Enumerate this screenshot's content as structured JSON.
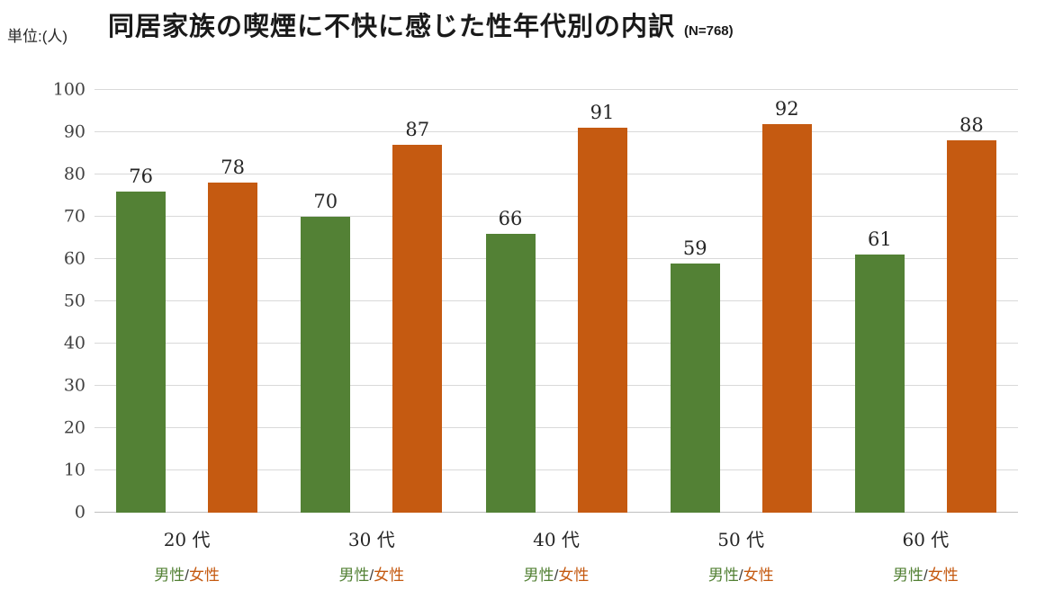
{
  "header": {
    "unit_label": "単位:(人)",
    "title": "同居家族の喫煙に不快に感じた性年代別の内訳",
    "n_label": "(N=768)"
  },
  "chart_data": {
    "type": "bar",
    "title": "同居家族の喫煙に不快に感じた性年代別の内訳",
    "subtitle": "(N=768)",
    "unit": "単位:(人)",
    "categories": [
      "20 代",
      "30 代",
      "40 代",
      "50 代",
      "60 代"
    ],
    "series": [
      {
        "name": "男性",
        "color": "#538135",
        "values": [
          76,
          70,
          66,
          59,
          61
        ]
      },
      {
        "name": "女性",
        "color": "#C55A11",
        "values": [
          78,
          87,
          91,
          92,
          88
        ]
      }
    ],
    "group_sublabel_separator": "/",
    "ylim": [
      0,
      100
    ],
    "ytick_step": 10,
    "grid": true,
    "legend_position": "below-each-group"
  }
}
